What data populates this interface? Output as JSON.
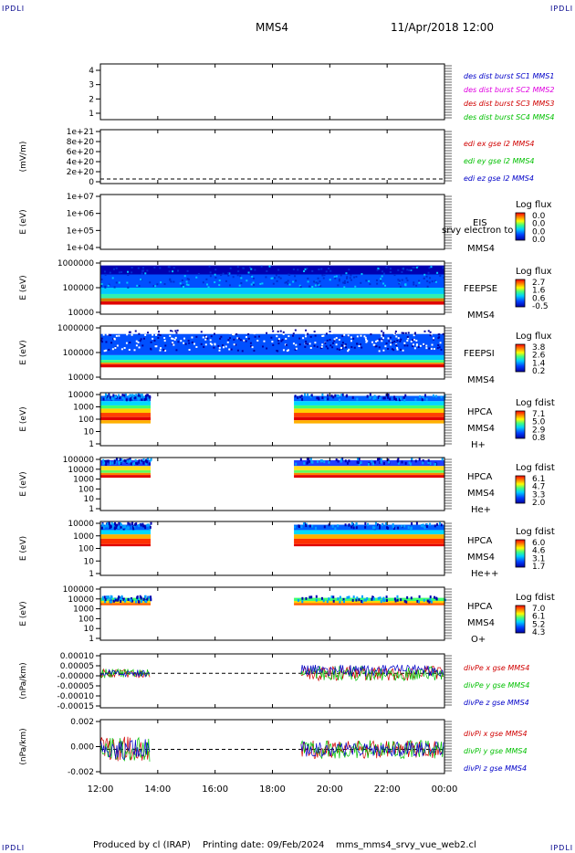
{
  "header": {
    "corner_left": "IPDLI",
    "corner_right": "IPDLI",
    "mission": "MMS4",
    "datetime": "11/Apr/2018 12:00"
  },
  "footer": {
    "credit": "Produced by cl (IRAP)",
    "printing": "Printing date: 09/Feb/2024",
    "filename": "mms_mms4_srvy_vue_web2.cl",
    "corner_left": "IPDLI",
    "corner_right": "IPDLI"
  },
  "colors": {
    "mms1": "#0000c8",
    "mms2": "#e000e0",
    "mms3": "#d00000",
    "mms4": "#00c000",
    "corner": "#00008b"
  },
  "chart_data": {
    "type": "heatmap",
    "time_ticks": [
      "12:00",
      "14:00",
      "16:00",
      "18:00",
      "20:00",
      "22:00",
      "00:00"
    ],
    "time_range_hours": [
      12,
      24
    ],
    "panels": [
      {
        "id": "p1",
        "ylabel": "",
        "ticks": [
          "4",
          "3",
          "2",
          "1"
        ],
        "legend": [
          {
            "text": "des dist burst SC1 MMS1",
            "color": "#0000c8"
          },
          {
            "text": "des dist burst SC2 MMS2",
            "color": "#e000e0"
          },
          {
            "text": "des dist burst SC3 MMS3",
            "color": "#d00000"
          },
          {
            "text": "des dist burst SC4 MMS4",
            "color": "#00c000"
          }
        ]
      },
      {
        "id": "p2",
        "ylabel": "(mV/m)",
        "ticks": [
          "1e+21",
          "8e+20",
          "6e+20",
          "4e+20",
          "2e+20",
          "0"
        ],
        "legend": [
          {
            "text": "edi ex gse l2 MMS4",
            "color": "#d00000"
          },
          {
            "text": "edi ey gse l2 MMS4",
            "color": "#00c000"
          },
          {
            "text": "edi ez gse l2 MMS4",
            "color": "#0000c8"
          }
        ]
      },
      {
        "id": "p3",
        "ylabel": "E (eV)",
        "ticks": [
          "1e+07",
          "1e+06",
          "1e+05",
          "1e+04"
        ],
        "label": [
          "EIS",
          "srvy electron to",
          "MMS4"
        ],
        "cbar_title": "Log flux",
        "cbar_ticks": [
          "0.0",
          "0.0",
          "0.0",
          "0.0"
        ]
      },
      {
        "id": "p4",
        "ylabel": "E (eV)",
        "ticks": [
          "1000000",
          "100000",
          "10000"
        ],
        "label": [
          "FEEPSE",
          "MMS4"
        ],
        "cbar_title": "Log flux",
        "cbar_ticks": [
          "2.7",
          "1.6",
          "0.6",
          "-0.5"
        ]
      },
      {
        "id": "p5",
        "ylabel": "E (eV)",
        "ticks": [
          "1000000",
          "100000",
          "10000"
        ],
        "label": [
          "FEEPSI",
          "MMS4"
        ],
        "cbar_title": "Log flux",
        "cbar_ticks": [
          "3.8",
          "2.6",
          "1.4",
          "0.2"
        ]
      },
      {
        "id": "p6",
        "ylabel": "E (eV)",
        "ticks": [
          "10000",
          "1000",
          "100",
          "10",
          "1"
        ],
        "label": [
          "HPCA",
          "MMS4",
          "H+"
        ],
        "cbar_title": "Log fdist",
        "cbar_ticks": [
          "7.1",
          "5.0",
          "2.9",
          "0.8"
        ]
      },
      {
        "id": "p7",
        "ylabel": "E (eV)",
        "ticks": [
          "100000",
          "10000",
          "1000",
          "100",
          "10",
          "1"
        ],
        "label": [
          "HPCA",
          "MMS4",
          "He+"
        ],
        "cbar_title": "Log fdist",
        "cbar_ticks": [
          "6.1",
          "4.7",
          "3.3",
          "2.0"
        ]
      },
      {
        "id": "p8",
        "ylabel": "E (eV)",
        "ticks": [
          "10000",
          "1000",
          "100",
          "10",
          "1"
        ],
        "label": [
          "HPCA",
          "MMS4",
          "He++"
        ],
        "cbar_title": "Log fdist",
        "cbar_ticks": [
          "6.0",
          "4.6",
          "3.1",
          "1.7"
        ]
      },
      {
        "id": "p9",
        "ylabel": "E (eV)",
        "ticks": [
          "100000",
          "10000",
          "1000",
          "100",
          "10",
          "1"
        ],
        "label": [
          "HPCA",
          "MMS4",
          "O+"
        ],
        "cbar_title": "Log fdist",
        "cbar_ticks": [
          "7.0",
          "6.1",
          "5.2",
          "4.3"
        ]
      },
      {
        "id": "p10",
        "ylabel": "(nPa/km)",
        "ticks": [
          "0.00010",
          "0.00005",
          "-0.00000",
          "-0.00005",
          "-0.00010",
          "-0.00015"
        ],
        "legend": [
          {
            "text": "divPe x gse MMS4",
            "color": "#d00000"
          },
          {
            "text": "divPe y gse MMS4",
            "color": "#00c000"
          },
          {
            "text": "divPe z gse MMS4",
            "color": "#0000c8"
          }
        ]
      },
      {
        "id": "p11",
        "ylabel": "(nPa/km)",
        "ticks": [
          "0.002",
          "0.000",
          "-0.002"
        ],
        "legend": [
          {
            "text": "divPi x gse MMS4",
            "color": "#d00000"
          },
          {
            "text": "divPi y gse MMS4",
            "color": "#00c000"
          },
          {
            "text": "divPi z gse MMS4",
            "color": "#0000c8"
          }
        ]
      }
    ],
    "data_intervals_hours": [
      [
        12.0,
        13.75
      ],
      [
        18.75,
        24.0
      ]
    ]
  }
}
